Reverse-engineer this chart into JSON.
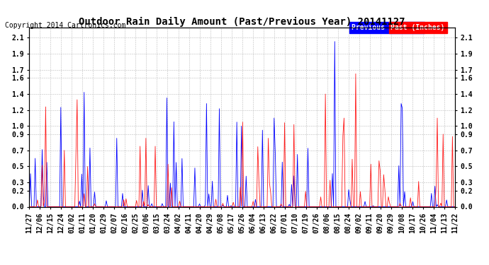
{
  "title": "Outdoor Rain Daily Amount (Past/Previous Year) 20141127",
  "copyright": "Copyright 2014 Cartronics.com",
  "legend_labels": [
    "Previous (Inches)",
    "Past (Inches)"
  ],
  "legend_colors": [
    "#0000ff",
    "#ff0000"
  ],
  "bg_color": "#ffffff",
  "plot_bg_color": "#ffffff",
  "grid_color": "#bbbbbb",
  "yticks": [
    0.0,
    0.2,
    0.3,
    0.5,
    0.7,
    0.9,
    1.0,
    1.2,
    1.4,
    1.6,
    1.7,
    1.9,
    2.1
  ],
  "ylim": [
    0.0,
    2.22
  ],
  "x_labels": [
    "11/27",
    "12/06",
    "12/15",
    "12/24",
    "01/02",
    "01/11",
    "01/20",
    "01/29",
    "02/07",
    "02/16",
    "02/25",
    "03/06",
    "03/15",
    "03/24",
    "04/02",
    "04/11",
    "04/20",
    "04/29",
    "05/08",
    "05/17",
    "05/26",
    "06/04",
    "06/13",
    "06/22",
    "07/01",
    "07/10",
    "07/19",
    "07/26",
    "08/06",
    "08/15",
    "08/24",
    "09/02",
    "09/11",
    "09/20",
    "09/29",
    "10/08",
    "10/17",
    "10/26",
    "11/04",
    "11/13",
    "11/22"
  ],
  "blue_line_color": "#0000ff",
  "red_line_color": "#ff0000",
  "title_fontsize": 10,
  "copyright_fontsize": 7,
  "tick_fontsize": 7,
  "legend_fontsize": 7
}
